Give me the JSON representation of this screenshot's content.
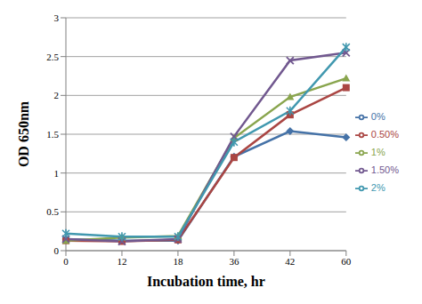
{
  "chart_data": {
    "type": "line",
    "x_label": "Incubation time, hr",
    "y_label": "OD 650nm",
    "categories": [
      "0",
      "12",
      "18",
      "36",
      "42",
      "60"
    ],
    "ylim": [
      0,
      3
    ],
    "yticks": [
      0,
      0.5,
      1,
      1.5,
      2,
      2.5,
      3
    ],
    "grid": true,
    "legend": "right",
    "series": [
      {
        "name": "0%",
        "color": "#4572A7",
        "marker": "diamond",
        "values": [
          0.15,
          0.13,
          0.13,
          1.21,
          1.54,
          1.46
        ]
      },
      {
        "name": "0.50%",
        "color": "#AA4643",
        "marker": "square",
        "values": [
          0.13,
          0.12,
          0.14,
          1.2,
          1.75,
          2.1
        ]
      },
      {
        "name": "1%",
        "color": "#89A54E",
        "marker": "triangle",
        "values": [
          0.13,
          0.17,
          0.19,
          1.45,
          1.98,
          2.22
        ]
      },
      {
        "name": "1.50%",
        "color": "#71588F",
        "marker": "x",
        "values": [
          0.15,
          0.12,
          0.15,
          1.47,
          2.45,
          2.55
        ]
      },
      {
        "name": "2%",
        "color": "#4198AF",
        "marker": "star",
        "values": [
          0.22,
          0.18,
          0.18,
          1.4,
          1.8,
          2.62
        ]
      }
    ]
  }
}
